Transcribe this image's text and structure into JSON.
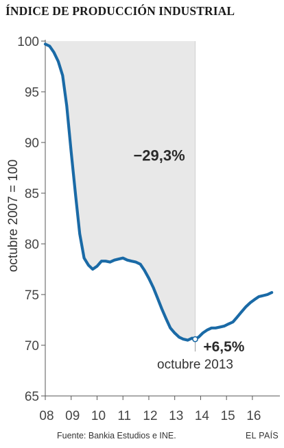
{
  "title": "ÍNDICE DE PRODUCCIÓN INDUSTRIAL",
  "source": "Fuente: Bankia Estudios e INE.",
  "brand": "EL PAÍS",
  "colors": {
    "line": "#1a6aa6",
    "shade": "#e8e8e8",
    "axis": "#555555",
    "annotation": "#2a2a2a"
  },
  "chart_data": {
    "type": "line",
    "title": "ÍNDICE DE PRODUCCIÓN INDUSTRIAL",
    "ylabel": "octubre 2007 = 100",
    "xlabel": "",
    "ylim": [
      65,
      100
    ],
    "xlim": [
      2008,
      2016.85
    ],
    "yticks": [
      65,
      70,
      75,
      80,
      85,
      90,
      95,
      100
    ],
    "xticks": [
      {
        "value": 2008,
        "label": "08"
      },
      {
        "value": 2009,
        "label": "09"
      },
      {
        "value": 2010,
        "label": "10"
      },
      {
        "value": 2011,
        "label": "11"
      },
      {
        "value": 2012,
        "label": "12"
      },
      {
        "value": 2013,
        "label": "13"
      },
      {
        "value": 2014,
        "label": "14"
      },
      {
        "value": 2015,
        "label": "15"
      },
      {
        "value": 2016,
        "label": "16"
      }
    ],
    "grid": false,
    "series": [
      {
        "x": [
          2008.0,
          2008.17,
          2008.33,
          2008.5,
          2008.67,
          2008.83,
          2009.0,
          2009.17,
          2009.33,
          2009.5,
          2009.67,
          2009.83,
          2010.0,
          2010.17,
          2010.33,
          2010.5,
          2010.67,
          2010.83,
          2011.0,
          2011.17,
          2011.33,
          2011.5,
          2011.67,
          2011.83,
          2012.0,
          2012.17,
          2012.33,
          2012.5,
          2012.67,
          2012.83,
          2013.0,
          2013.17,
          2013.33,
          2013.5,
          2013.67,
          2013.79,
          2013.92,
          2014.08,
          2014.25,
          2014.42,
          2014.58,
          2014.75,
          2014.92,
          2015.08,
          2015.25,
          2015.42,
          2015.58,
          2015.75,
          2015.92,
          2016.08,
          2016.25,
          2016.42,
          2016.58,
          2016.75
        ],
        "values": [
          99.7,
          99.5,
          98.9,
          98.0,
          96.6,
          93.6,
          89.1,
          84.8,
          81.0,
          78.6,
          77.9,
          77.5,
          77.8,
          78.3,
          78.3,
          78.2,
          78.4,
          78.5,
          78.6,
          78.4,
          78.3,
          78.2,
          78.0,
          77.4,
          76.6,
          75.7,
          74.7,
          73.6,
          72.6,
          71.7,
          71.2,
          70.8,
          70.6,
          70.5,
          70.7,
          70.6,
          70.8,
          71.2,
          71.5,
          71.7,
          71.7,
          71.8,
          71.9,
          72.1,
          72.3,
          72.8,
          73.3,
          73.8,
          74.2,
          74.5,
          74.8,
          74.9,
          75.0,
          75.2
        ]
      }
    ],
    "annotations": [
      {
        "text": "−29,3%",
        "x": 2012.4,
        "y": 88.2
      },
      {
        "text": "+6,5%",
        "x": 2014.9,
        "y": 69.4
      },
      {
        "text": "octubre 2013",
        "x": 2013.79,
        "y": 67.7
      }
    ],
    "highlight": {
      "from_x": 2008.0,
      "to_x": 2013.79,
      "top_y": 100,
      "marker_x": 2013.79,
      "marker_y": 70.6
    }
  }
}
